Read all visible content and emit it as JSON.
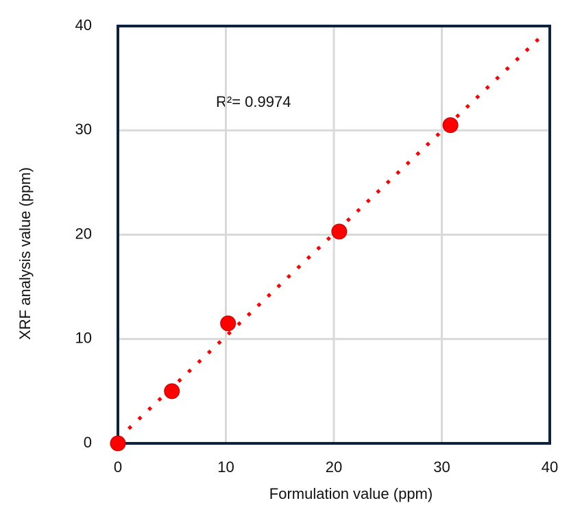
{
  "chart_data": {
    "type": "scatter",
    "x_label": "Formulation value (ppm)",
    "y_label": "XRF analysis  value  (ppm)",
    "annotation": "R²=  0.9974",
    "series": [
      {
        "color": "#ff0000",
        "x": [
          0,
          5,
          10.2,
          20.5,
          30.8
        ],
        "values": [
          0,
          5,
          11.5,
          20.3,
          30.5
        ]
      }
    ],
    "trendline": {
      "color": "#ff0000",
      "x": [
        1,
        39
      ],
      "values": [
        1.4,
        38.8
      ]
    },
    "xlim": [
      0,
      40
    ],
    "ylim": [
      0,
      40
    ],
    "xticks": [
      0,
      10,
      20,
      30,
      40
    ],
    "yticks": [
      0,
      10,
      20,
      30,
      40
    ],
    "grid": true
  }
}
